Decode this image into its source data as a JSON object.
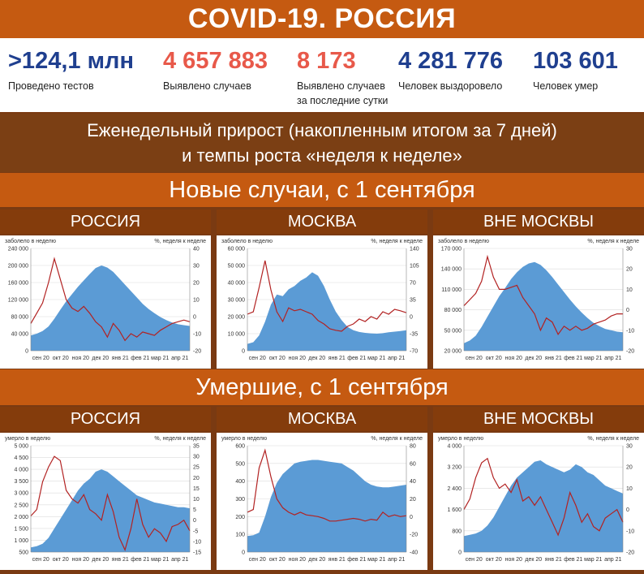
{
  "header": {
    "title": "COVID-19. РОССИЯ"
  },
  "stats": [
    {
      "value": ">124,1 млн",
      "label": "Проведено тестов",
      "color": "#1f3f8f"
    },
    {
      "value": "4 657 883",
      "label": "Выявлено случаев",
      "color": "#e8594a"
    },
    {
      "value": "8 173",
      "label": "Выявлено случаев за последние сутки",
      "color": "#e8594a"
    },
    {
      "value": "4 281 776",
      "label": "Человек выздоровело",
      "color": "#1f3f8f"
    },
    {
      "value": "103 601",
      "label": "Человек умер",
      "color": "#1f3f8f"
    }
  ],
  "subtitle": {
    "line1": "Еженедельный прирост (накопленным итогом за 7 дней)",
    "line2": "и темпы роста «неделя к неделе»"
  },
  "section_cases": "Новые случаи, с 1 сентября",
  "section_deaths": "Умершие, с 1 сентября",
  "colors": {
    "area": "#5b9bd5",
    "line": "#b22222",
    "band": "#c55a11",
    "panel_header": "#843c0c"
  },
  "chart_data": [
    {
      "type": "area",
      "header": "РОССИЯ",
      "left_axis_label": "заболело в неделю",
      "right_axis_label": "%, неделя к неделе",
      "x_ticks": [
        "сен 20",
        "окт 20",
        "ноя 20",
        "дек 20",
        "янв 21",
        "фев 21",
        "мар 21",
        "апр 21"
      ],
      "left_ticks": [
        "0",
        "40 000",
        "80 000",
        "120 000",
        "160 000",
        "200 000",
        "240 000"
      ],
      "right_ticks": [
        "-20",
        "-10",
        "0",
        "10",
        "20",
        "30",
        "40"
      ],
      "ylim": [
        0,
        240000
      ],
      "ylim_right": [
        -20,
        40
      ],
      "series": [
        {
          "name": "заболело в неделю",
          "axis": "left",
          "values": [
            36000,
            40000,
            46000,
            57000,
            75000,
            96000,
            116000,
            133000,
            150000,
            165000,
            180000,
            194000,
            200000,
            195000,
            185000,
            170000,
            155000,
            140000,
            125000,
            110000,
            98000,
            88000,
            79000,
            72000,
            66000,
            62000,
            60000,
            58000
          ]
        },
        {
          "name": "%, неделя к неделе",
          "axis": "right",
          "values": [
            -4,
            2,
            8,
            20,
            34,
            22,
            10,
            5,
            3,
            6,
            2,
            -3,
            -6,
            -12,
            -4,
            -8,
            -14,
            -10,
            -12,
            -9,
            -10,
            -11,
            -8,
            -6,
            -4,
            -3,
            -2,
            -3
          ]
        }
      ]
    },
    {
      "type": "area",
      "header": "МОСКВА",
      "left_axis_label": "заболело в неделю",
      "right_axis_label": "%, неделя к неделе",
      "x_ticks": [
        "сен 20",
        "окт 20",
        "ноя 20",
        "дек 20",
        "янв 21",
        "фев 21",
        "мар 21",
        "апр 21"
      ],
      "left_ticks": [
        "0",
        "10 000",
        "20 000",
        "30 000",
        "40 000",
        "50 000",
        "60 000"
      ],
      "right_ticks": [
        "-70",
        "-35",
        "0",
        "35",
        "70",
        "105",
        "140"
      ],
      "ylim": [
        0,
        60000
      ],
      "ylim_right": [
        -70,
        140
      ],
      "series": [
        {
          "name": "заболело в неделю",
          "axis": "left",
          "values": [
            4000,
            5000,
            9000,
            17000,
            27000,
            33000,
            32000,
            36000,
            38000,
            41000,
            43000,
            46000,
            44000,
            38000,
            30000,
            23000,
            18000,
            14000,
            12000,
            11000,
            10500,
            10200,
            10000,
            10300,
            10800,
            11200,
            11500,
            12000
          ]
        },
        {
          "name": "%, неделя к неделе",
          "axis": "right",
          "values": [
            5,
            10,
            60,
            115,
            55,
            10,
            -10,
            18,
            12,
            15,
            10,
            5,
            -8,
            -15,
            -25,
            -28,
            -30,
            -20,
            -15,
            -5,
            -10,
            0,
            -5,
            10,
            5,
            15,
            12,
            8
          ]
        }
      ]
    },
    {
      "type": "area",
      "header": "ВНЕ МОСКВЫ",
      "left_axis_label": "заболело в неделю",
      "right_axis_label": "%, неделя к неделе",
      "x_ticks": [
        "сен 20",
        "окт 20",
        "ноя 20",
        "дек 20",
        "янв 21",
        "фев 21",
        "мар 21",
        "апр 21"
      ],
      "left_ticks": [
        "20 000",
        "50 000",
        "80 000",
        "110 000",
        "140 000",
        "170 000"
      ],
      "right_ticks": [
        "-20",
        "-10",
        "0",
        "10",
        "20",
        "30"
      ],
      "ylim": [
        20000,
        170000
      ],
      "ylim_right": [
        -20,
        30
      ],
      "series": [
        {
          "name": "заболело в неделю",
          "axis": "left",
          "values": [
            31000,
            35000,
            42000,
            55000,
            70000,
            85000,
            100000,
            112000,
            125000,
            135000,
            143000,
            148000,
            150000,
            146000,
            138000,
            128000,
            117000,
            106000,
            95000,
            85000,
            76000,
            68000,
            61000,
            56000,
            52000,
            50000,
            48000,
            47000
          ]
        },
        {
          "name": "%, неделя к неделе",
          "axis": "right",
          "values": [
            2,
            5,
            8,
            14,
            26,
            16,
            10,
            10,
            11,
            12,
            6,
            2,
            -2,
            -10,
            -4,
            -6,
            -12,
            -8,
            -10,
            -8,
            -10,
            -9,
            -7,
            -6,
            -5,
            -3,
            -2,
            -2
          ]
        }
      ]
    },
    {
      "type": "area",
      "header": "РОССИЯ",
      "left_axis_label": "умерло в неделю",
      "right_axis_label": "%, неделя к неделе",
      "x_ticks": [
        "сен 20",
        "окт 20",
        "ноя 20",
        "дек 20",
        "янв 21",
        "фев 21",
        "мар 21",
        "апр 21"
      ],
      "left_ticks": [
        "500",
        "1 000",
        "1 500",
        "2 000",
        "2 500",
        "3 000",
        "3 500",
        "4 000",
        "4 500",
        "5 000"
      ],
      "right_ticks": [
        "-15",
        "-10",
        "-5",
        "0",
        "5",
        "10",
        "15",
        "20",
        "25",
        "30",
        "35"
      ],
      "ylim": [
        500,
        5000
      ],
      "ylim_right": [
        -15,
        35
      ],
      "series": [
        {
          "name": "умерло в неделю",
          "axis": "left",
          "values": [
            700,
            750,
            850,
            1100,
            1500,
            1900,
            2300,
            2700,
            3100,
            3400,
            3600,
            3900,
            4000,
            3900,
            3700,
            3500,
            3300,
            3100,
            2900,
            2800,
            2700,
            2600,
            2550,
            2500,
            2450,
            2400,
            2400,
            2350
          ]
        },
        {
          "name": "%, неделя к неделе",
          "axis": "right",
          "values": [
            2,
            5,
            18,
            25,
            30,
            28,
            14,
            10,
            8,
            12,
            5,
            3,
            0,
            12,
            4,
            -8,
            -14,
            -4,
            10,
            -2,
            -8,
            -4,
            -6,
            -10,
            -3,
            -2,
            0,
            -5
          ]
        }
      ]
    },
    {
      "type": "area",
      "header": "МОСКВА",
      "left_axis_label": "умерло в неделю",
      "right_axis_label": "%, неделя к неделе",
      "x_ticks": [
        "сен 20",
        "окт 20",
        "ноя 20",
        "дек 20",
        "янв 21",
        "фев 21",
        "мар 21",
        "апр 21"
      ],
      "left_ticks": [
        "0",
        "100",
        "200",
        "300",
        "400",
        "500",
        "600"
      ],
      "right_ticks": [
        "-40",
        "-20",
        "0",
        "20",
        "40",
        "60",
        "80"
      ],
      "ylim": [
        0,
        600
      ],
      "ylim_right": [
        -40,
        80
      ],
      "series": [
        {
          "name": "умерло в неделю",
          "axis": "left",
          "values": [
            90,
            95,
            110,
            200,
            310,
            390,
            440,
            470,
            500,
            510,
            515,
            520,
            520,
            515,
            510,
            505,
            500,
            480,
            460,
            430,
            400,
            380,
            370,
            365,
            365,
            370,
            375,
            380
          ]
        },
        {
          "name": "%, неделя к неделе",
          "axis": "right",
          "values": [
            5,
            8,
            55,
            75,
            45,
            20,
            10,
            5,
            2,
            5,
            2,
            1,
            0,
            -2,
            -5,
            -5,
            -4,
            -3,
            -2,
            -3,
            -5,
            -3,
            -4,
            5,
            0,
            2,
            0,
            1
          ]
        }
      ]
    },
    {
      "type": "area",
      "header": "ВНЕ МОСКВЫ",
      "left_axis_label": "умерло в неделю",
      "right_axis_label": "%, неделя к неделе",
      "x_ticks": [
        "сен 20",
        "окт 20",
        "ноя 20",
        "дек 20",
        "янв 21",
        "фев 21",
        "мар 21",
        "апр 21"
      ],
      "left_ticks": [
        "0",
        "800",
        "1 600",
        "2 400",
        "3 200",
        "4 000"
      ],
      "right_ticks": [
        "-20",
        "-10",
        "0",
        "10",
        "20",
        "30"
      ],
      "ylim": [
        0,
        4000
      ],
      "ylim_right": [
        -20,
        30
      ],
      "series": [
        {
          "name": "умерло в неделю",
          "axis": "left",
          "values": [
            600,
            650,
            700,
            800,
            1000,
            1300,
            1700,
            2100,
            2500,
            2800,
            3000,
            3200,
            3400,
            3450,
            3300,
            3200,
            3100,
            3000,
            3100,
            3300,
            3200,
            3000,
            2900,
            2700,
            2500,
            2400,
            2300,
            2200
          ]
        },
        {
          "name": "%, неделя к неделе",
          "axis": "right",
          "values": [
            0,
            5,
            15,
            22,
            24,
            15,
            10,
            12,
            8,
            14,
            4,
            6,
            2,
            6,
            0,
            -6,
            -12,
            -4,
            8,
            2,
            -6,
            -2,
            -8,
            -10,
            -4,
            -2,
            0,
            -6
          ]
        }
      ]
    }
  ]
}
